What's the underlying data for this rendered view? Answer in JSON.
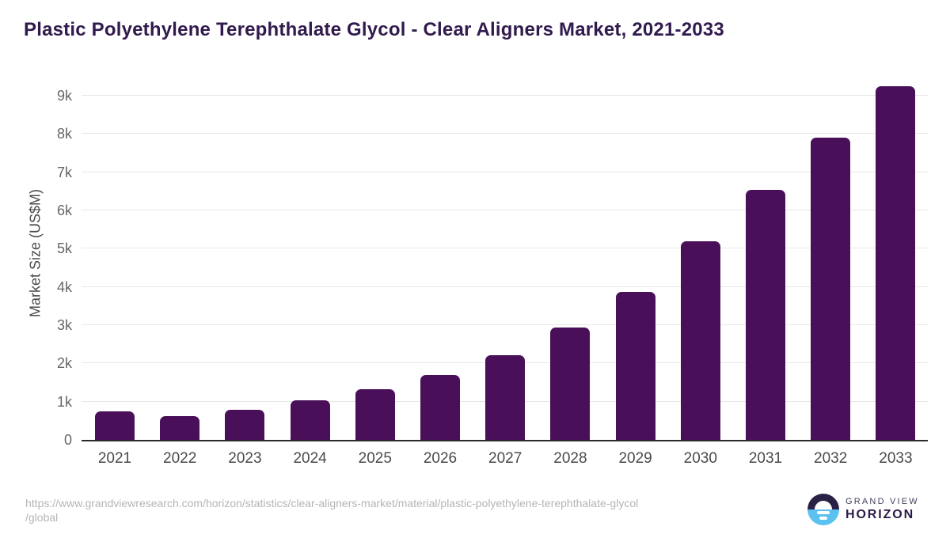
{
  "chart_data": {
    "type": "bar",
    "title": "Plastic Polyethylene Terephthalate Glycol - Clear Aligners Market, 2021-2033",
    "categories": [
      "2021",
      "2022",
      "2023",
      "2024",
      "2025",
      "2026",
      "2027",
      "2028",
      "2029",
      "2030",
      "2031",
      "2032",
      "2033"
    ],
    "values": [
      740,
      630,
      790,
      1030,
      1320,
      1690,
      2210,
      2930,
      3870,
      5200,
      6550,
      7900,
      9250
    ],
    "xlabel": "",
    "ylabel": "Market Size (US$M)",
    "ylim": [
      0,
      9500
    ],
    "yticks": {
      "values": [
        0,
        1000,
        2000,
        3000,
        4000,
        5000,
        6000,
        7000,
        8000,
        9000
      ],
      "labels": [
        "0",
        "1k",
        "2k",
        "3k",
        "4k",
        "5k",
        "6k",
        "7k",
        "8k",
        "9k"
      ]
    },
    "grid": true,
    "legend": false,
    "bar_color": "#491059"
  },
  "footer": {
    "source_url_line1": "https://www.grandviewresearch.com/horizon/statistics/clear-aligners-market/material/plastic-polyethylene-terephthalate-glycol",
    "source_url_line2": "/global",
    "logo": {
      "top_text": "GRAND VIEW",
      "bottom_text": "HORIZON"
    }
  },
  "colors": {
    "bar": "#491059",
    "title": "#311a4d",
    "axis_line": "#2b2b2b",
    "gridline": "#e7e7e7",
    "y_tick_label": "#666666",
    "x_tick_label": "#4a4a4a",
    "url_text": "#b5b5b5",
    "logo_dark": "#2b2045",
    "logo_blue": "#5bc2f0"
  }
}
